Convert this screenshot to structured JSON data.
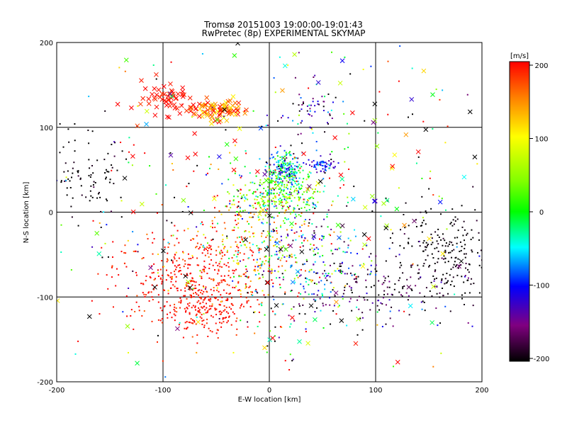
{
  "chart_data": {
    "type": "scatter",
    "title": "Tromsø 20151003 19:00:00-19:01:43",
    "subtitle": "RwPretec (8p) EXPERIMENTAL SKYMAP",
    "xlabel": "E-W location [km]",
    "ylabel": "N-S location [km]",
    "xlim": [
      -200,
      200
    ],
    "ylim": [
      -200,
      200
    ],
    "xticks": [
      "-200",
      "-100",
      "0",
      "100",
      "200"
    ],
    "yticks": [
      "-200",
      "-100",
      "0",
      "100",
      "200"
    ],
    "xtick_values": [
      -200,
      -100,
      0,
      100,
      200
    ],
    "ytick_values": [
      -200,
      -100,
      0,
      100,
      200
    ],
    "grid": true,
    "colorbar": {
      "label": "[m/s]",
      "range": [
        -200,
        200
      ],
      "ticks": [
        "200",
        "100",
        "0",
        "-100",
        "-200"
      ],
      "tick_values": [
        200,
        100,
        0,
        -100,
        -200
      ],
      "colormap": "rainbow (black-purple-blue-cyan-green-yellow-red)"
    },
    "markers": {
      "dot": "small dot",
      "cross": "x"
    },
    "clusters": [
      {
        "x": -50,
        "y": 120,
        "sx": 14,
        "sy": 6,
        "n": 90,
        "v": 160,
        "vs": 40,
        "m": "cross"
      },
      {
        "x": -95,
        "y": 135,
        "sx": 12,
        "sy": 9,
        "n": 50,
        "v": 195,
        "vs": 10,
        "m": "cross"
      },
      {
        "x": -60,
        "y": -115,
        "sx": 20,
        "sy": 15,
        "n": 180,
        "v": 195,
        "vs": 10,
        "m": "dot"
      },
      {
        "x": -80,
        "y": -75,
        "sx": 35,
        "sy": 25,
        "n": 320,
        "v": 195,
        "vs": 15,
        "m": "dot"
      },
      {
        "x": -20,
        "y": -40,
        "sx": 30,
        "sy": 40,
        "n": 300,
        "v": 150,
        "vs": 70,
        "m": "dot"
      },
      {
        "x": 15,
        "y": 50,
        "sx": 8,
        "sy": 10,
        "n": 220,
        "v": -60,
        "vs": 60,
        "m": "dot"
      },
      {
        "x": 10,
        "y": 20,
        "sx": 20,
        "sy": 12,
        "n": 260,
        "v": 20,
        "vs": 50,
        "m": "dot"
      },
      {
        "x": 50,
        "y": 55,
        "sx": 6,
        "sy": 4,
        "n": 60,
        "v": -110,
        "vs": 30,
        "m": "dot"
      },
      {
        "x": 30,
        "y": -50,
        "sx": 30,
        "sy": 40,
        "n": 280,
        "v": -60,
        "vs": 90,
        "m": "dot"
      },
      {
        "x": 160,
        "y": -50,
        "sx": 25,
        "sy": 30,
        "n": 220,
        "v": -200,
        "vs": 10,
        "m": "dot"
      },
      {
        "x": 100,
        "y": -90,
        "sx": 50,
        "sy": 20,
        "n": 160,
        "v": -170,
        "vs": 40,
        "m": "dot"
      },
      {
        "x": -175,
        "y": 40,
        "sx": 20,
        "sy": 25,
        "n": 90,
        "v": -200,
        "vs": 10,
        "m": "dot"
      },
      {
        "x": 40,
        "y": 120,
        "sx": 15,
        "sy": 15,
        "n": 60,
        "v": -150,
        "vs": 60,
        "m": "dot"
      },
      {
        "x": 0,
        "y": 0,
        "sx": 120,
        "sy": 100,
        "n": 350,
        "v": 0,
        "vs": 200,
        "m": "dot"
      },
      {
        "x": 0,
        "y": 0,
        "sx": 120,
        "sy": 100,
        "n": 160,
        "v": 0,
        "vs": 200,
        "m": "cross"
      }
    ]
  }
}
